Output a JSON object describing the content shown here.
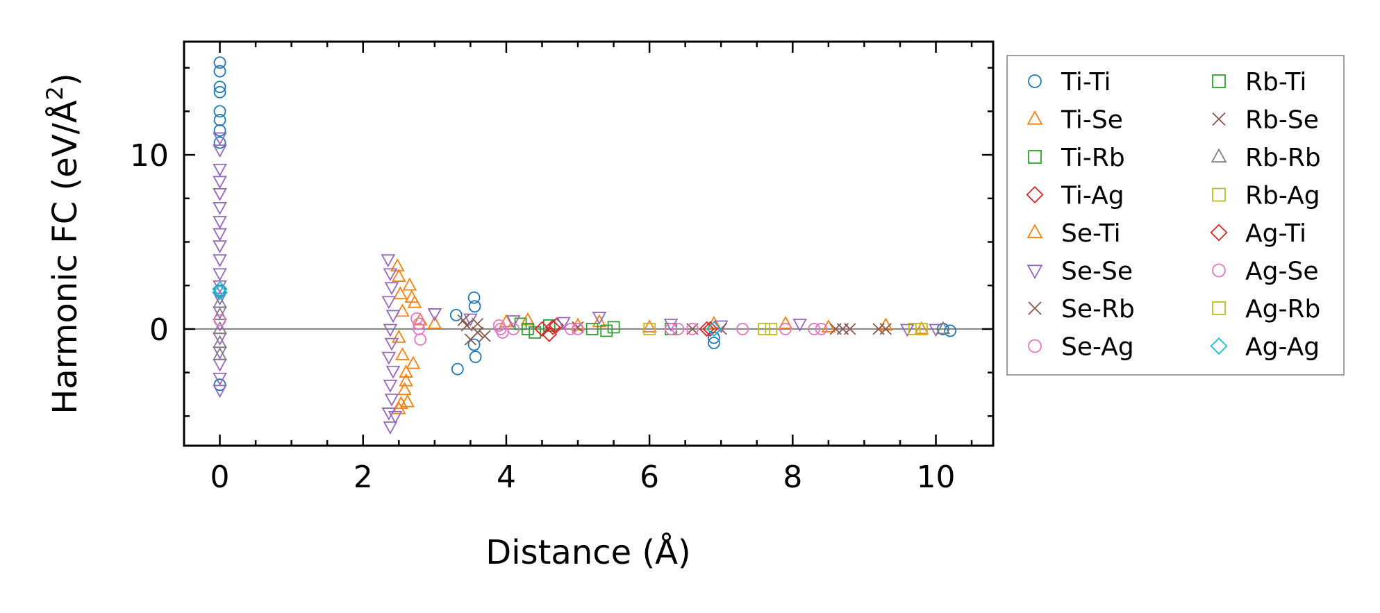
{
  "chart_data": {
    "type": "scatter",
    "xlabel": "Distance (Å)",
    "ylabel_main": "Harmonic FC (eV/Å",
    "ylabel_sup": "2",
    "ylabel_close": ")",
    "xlim": [
      -0.5,
      10.8
    ],
    "ylim": [
      -6.7,
      16.5
    ],
    "xticks": [
      0,
      2,
      4,
      6,
      8,
      10
    ],
    "xtick_labels": [
      "0",
      "2",
      "4",
      "6",
      "8",
      "10"
    ],
    "yticks": [
      0,
      10
    ],
    "ytick_labels": [
      "0",
      "10"
    ],
    "zero_line": 0,
    "legend_position": "outside-right",
    "legend_columns": 2,
    "series": [
      {
        "name": "Ti-Ti",
        "marker": "circle",
        "color": "#1f77b4",
        "points": [
          [
            0,
            15.3
          ],
          [
            0,
            14.8
          ],
          [
            0,
            13.9
          ],
          [
            0,
            13.6
          ],
          [
            0,
            12.5
          ],
          [
            0,
            12.0
          ],
          [
            0,
            11.4
          ],
          [
            0,
            10.7
          ],
          [
            0,
            2.2
          ],
          [
            0,
            -3.2
          ],
          [
            3.3,
            0.8
          ],
          [
            3.32,
            -2.3
          ],
          [
            3.55,
            1.8
          ],
          [
            3.56,
            1.3
          ],
          [
            3.57,
            -1.6
          ],
          [
            3.55,
            -0.9
          ],
          [
            6.9,
            -0.8
          ],
          [
            6.9,
            -0.5
          ],
          [
            10.1,
            0.0
          ],
          [
            10.2,
            -0.1
          ]
        ]
      },
      {
        "name": "Ti-Se",
        "marker": "triangle-up",
        "color": "#ff7f0e",
        "points": [
          [
            2.5,
            3.0
          ],
          [
            2.52,
            2.0
          ],
          [
            2.55,
            1.0
          ],
          [
            2.5,
            -0.5
          ],
          [
            2.55,
            -1.5
          ],
          [
            2.6,
            -2.5
          ],
          [
            2.58,
            -3.5
          ],
          [
            2.5,
            -4.6
          ],
          [
            2.62,
            -4.2
          ],
          [
            2.7,
            -2.0
          ],
          [
            2.65,
            2.5
          ],
          [
            2.72,
            1.5
          ],
          [
            2.8,
            0.5
          ],
          [
            4.3,
            0.5
          ],
          [
            5.3,
            0.4
          ],
          [
            6.9,
            0.3
          ],
          [
            7.9,
            0.3
          ],
          [
            9.3,
            0.2
          ]
        ]
      },
      {
        "name": "Ti-Rb",
        "marker": "square",
        "color": "#2ca02c",
        "points": [
          [
            4.2,
            0.3
          ],
          [
            4.4,
            -0.2
          ],
          [
            4.6,
            0.2
          ],
          [
            5.2,
            0.0
          ],
          [
            5.5,
            0.1
          ],
          [
            6.3,
            0.0
          ]
        ]
      },
      {
        "name": "Ti-Ag",
        "marker": "diamond",
        "color": "#d62728",
        "points": [
          [
            4.5,
            0.0
          ],
          [
            4.6,
            -0.3
          ],
          [
            4.7,
            0.2
          ],
          [
            6.8,
            0.0
          ]
        ]
      },
      {
        "name": "Se-Ti",
        "marker": "triangle-up",
        "color": "#ff7f0e",
        "points": [
          [
            2.48,
            3.6
          ],
          [
            2.53,
            -4.3
          ],
          [
            2.6,
            -3.0
          ],
          [
            2.68,
            1.8
          ],
          [
            3.0,
            0.3
          ],
          [
            4.0,
            0.4
          ],
          [
            5.0,
            0.2
          ],
          [
            6.0,
            0.1
          ],
          [
            8.5,
            0.1
          ],
          [
            9.8,
            0.0
          ]
        ]
      },
      {
        "name": "Se-Se",
        "marker": "triangle-down",
        "color": "#9467bd",
        "points": [
          [
            0,
            11.0
          ],
          [
            0,
            10.3
          ],
          [
            0,
            9.2
          ],
          [
            0,
            8.5
          ],
          [
            0,
            7.8
          ],
          [
            0,
            7.0
          ],
          [
            0,
            6.2
          ],
          [
            0,
            5.5
          ],
          [
            0,
            4.8
          ],
          [
            0,
            4.0
          ],
          [
            0,
            3.2
          ],
          [
            0,
            2.5
          ],
          [
            0,
            1.8
          ],
          [
            0,
            1.0
          ],
          [
            0,
            0.3
          ],
          [
            0,
            -0.5
          ],
          [
            0,
            -1.3
          ],
          [
            0,
            -2.0
          ],
          [
            0,
            -2.8
          ],
          [
            0,
            -3.5
          ],
          [
            2.35,
            4.0
          ],
          [
            2.38,
            3.2
          ],
          [
            2.4,
            2.4
          ],
          [
            2.36,
            1.6
          ],
          [
            2.42,
            0.8
          ],
          [
            2.38,
            0.0
          ],
          [
            2.4,
            -0.8
          ],
          [
            2.36,
            -1.6
          ],
          [
            2.42,
            -2.4
          ],
          [
            2.38,
            -3.2
          ],
          [
            2.4,
            -4.0
          ],
          [
            2.36,
            -4.8
          ],
          [
            2.38,
            -5.6
          ],
          [
            2.45,
            -5.0
          ],
          [
            3.0,
            0.9
          ],
          [
            3.5,
            0.6
          ],
          [
            4.1,
            0.5
          ],
          [
            4.8,
            0.4
          ],
          [
            5.3,
            0.7
          ],
          [
            6.3,
            0.3
          ],
          [
            7.0,
            0.2
          ],
          [
            8.1,
            0.3
          ],
          [
            9.6,
            0.0
          ],
          [
            10.0,
            0.0
          ]
        ]
      },
      {
        "name": "Se-Rb",
        "marker": "x",
        "color": "#8c564b",
        "points": [
          [
            3.4,
            0.5
          ],
          [
            3.5,
            -0.6
          ],
          [
            3.6,
            0.3
          ],
          [
            3.7,
            -0.4
          ],
          [
            5.0,
            0.1
          ],
          [
            7.0,
            0.0
          ],
          [
            8.6,
            0.0
          ],
          [
            8.8,
            0.0
          ],
          [
            9.3,
            0.0
          ]
        ]
      },
      {
        "name": "Se-Ag",
        "marker": "circle",
        "color": "#e377c2",
        "points": [
          [
            2.75,
            0.6
          ],
          [
            2.78,
            0.0
          ],
          [
            2.8,
            -0.6
          ],
          [
            3.9,
            0.2
          ],
          [
            3.95,
            -0.2
          ],
          [
            4.1,
            0.0
          ],
          [
            5.0,
            0.0
          ],
          [
            6.3,
            0.0
          ],
          [
            7.3,
            0.0
          ],
          [
            8.3,
            0.0
          ]
        ]
      },
      {
        "name": "Rb-Ti",
        "marker": "square",
        "color": "#2ca02c",
        "points": [
          [
            4.3,
            0.0
          ],
          [
            5.4,
            -0.1
          ]
        ]
      },
      {
        "name": "Rb-Se",
        "marker": "x",
        "color": "#8c564b",
        "points": [
          [
            3.45,
            0.2
          ],
          [
            3.6,
            -0.2
          ],
          [
            6.6,
            0.0
          ],
          [
            8.7,
            0.0
          ],
          [
            9.2,
            0.0
          ]
        ]
      },
      {
        "name": "Rb-Rb",
        "marker": "triangle-up",
        "color": "#7f7f7f",
        "points": [
          [
            0,
            1.5
          ],
          [
            0,
            0.8
          ],
          [
            0,
            0.0
          ],
          [
            0,
            -0.8
          ],
          [
            0,
            -1.5
          ],
          [
            10.1,
            0.0
          ]
        ]
      },
      {
        "name": "Rb-Ag",
        "marker": "square",
        "color": "#bcbd22",
        "points": [
          [
            6.0,
            0.0
          ],
          [
            7.7,
            0.0
          ],
          [
            9.8,
            0.0
          ]
        ]
      },
      {
        "name": "Ag-Ti",
        "marker": "diamond",
        "color": "#d62728",
        "points": [
          [
            4.65,
            0.1
          ],
          [
            6.85,
            0.0
          ]
        ]
      },
      {
        "name": "Ag-Se",
        "marker": "circle",
        "color": "#e377c2",
        "points": [
          [
            0,
            0.5
          ],
          [
            2.78,
            0.3
          ],
          [
            3.92,
            0.0
          ],
          [
            4.9,
            0.0
          ],
          [
            6.4,
            0.0
          ],
          [
            6.6,
            0.0
          ],
          [
            7.9,
            0.0
          ],
          [
            8.4,
            0.0
          ]
        ]
      },
      {
        "name": "Ag-Rb",
        "marker": "square",
        "color": "#bcbd22",
        "points": [
          [
            7.6,
            0.0
          ],
          [
            9.7,
            0.0
          ]
        ]
      },
      {
        "name": "Ag-Ag",
        "marker": "diamond",
        "color": "#17becf",
        "points": [
          [
            0,
            2.3
          ],
          [
            0,
            2.1
          ],
          [
            6.9,
            0.0
          ]
        ]
      }
    ]
  }
}
